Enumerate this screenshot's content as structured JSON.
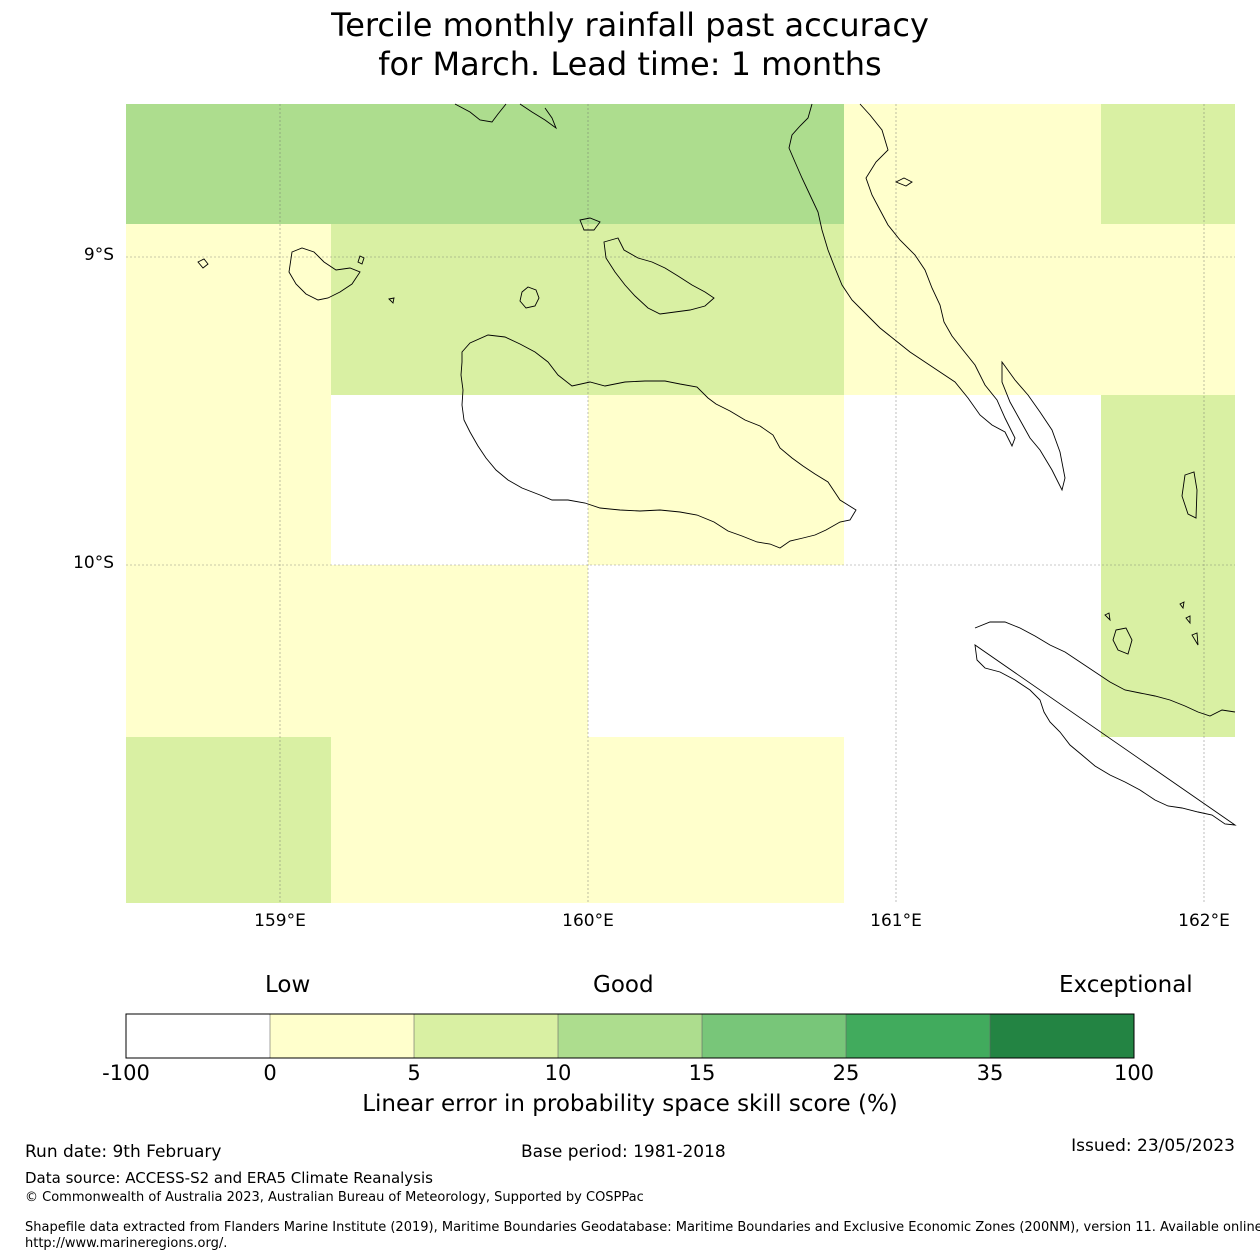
{
  "title": {
    "line1": "Tercile monthly rainfall past accuracy",
    "line2": "for March. Lead time: 1 months"
  },
  "map": {
    "lat_labels": [
      "9°S",
      "10°S"
    ],
    "lon_labels": [
      "159°E",
      "160°E",
      "161°E",
      "162°E"
    ],
    "ocean_color": "#ffffff",
    "coast_color": "#000000"
  },
  "colorbar": {
    "categories": [
      "Low",
      "Good",
      "Exceptional"
    ],
    "ticks": [
      "-100",
      "0",
      "5",
      "10",
      "15",
      "25",
      "35",
      "100"
    ],
    "colors": [
      "#ffffff",
      "#ffffcc",
      "#d9f0a3",
      "#addd8e",
      "#78c679",
      "#41ab5d",
      "#238443"
    ],
    "title": "Linear error in probability space skill score (%)"
  },
  "footer": {
    "run_date": "Run date: 9th February",
    "base_period": "Base period: 1981-2018",
    "issued": "Issued: 23/05/2023",
    "data_source": "Data source: ACCESS-S2 and ERA5 Climate Reanalysis",
    "copyright": "© Commonwealth of Australia 2023, Australian Bureau of Meteorology, Supported by COSPPac",
    "shapefile_line1": "Shapefile data extracted from Flanders Marine Institute (2019), Maritime Boundaries Geodatabase: Maritime Boundaries and Exclusive Economic Zones (200NM), version 11. Available online at",
    "shapefile_line2": "http://www.marineregions.org/."
  }
}
